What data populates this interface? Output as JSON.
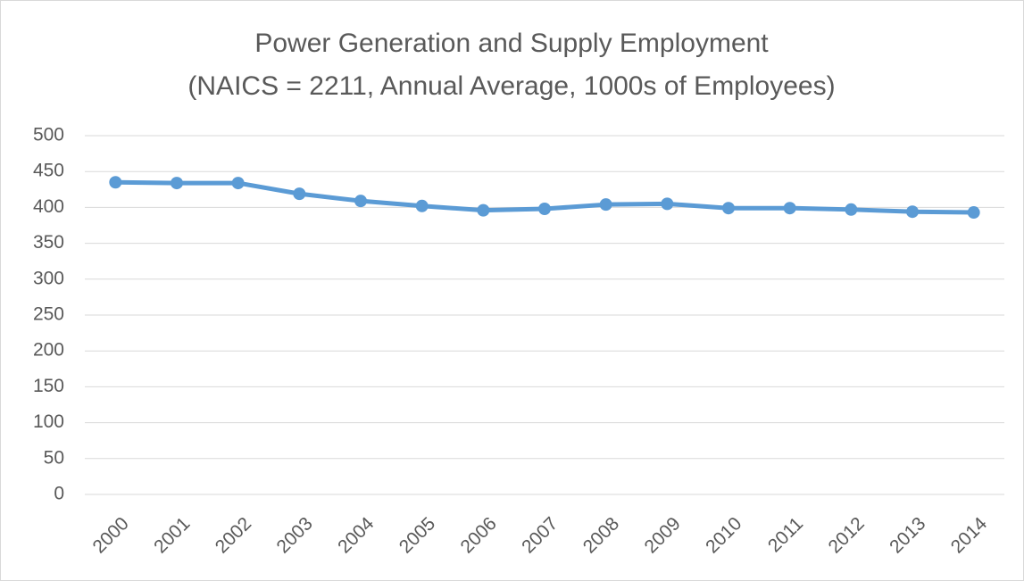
{
  "chart_data": {
    "type": "line",
    "title": "Power Generation and Supply Employment",
    "subtitle": "(NAICS = 2211, Annual Average, 1000s of Employees)",
    "categories": [
      "2000",
      "2001",
      "2002",
      "2003",
      "2004",
      "2005",
      "2006",
      "2007",
      "2008",
      "2009",
      "2010",
      "2011",
      "2012",
      "2013",
      "2014"
    ],
    "series": [
      {
        "name": "Employment",
        "color": "#5b9bd5",
        "values": [
          435,
          434,
          434,
          419,
          409,
          402,
          396,
          398,
          404,
          405,
          399,
          399,
          397,
          394,
          393
        ]
      }
    ],
    "ylim": [
      0,
      500
    ],
    "yticks": [
      0,
      50,
      100,
      150,
      200,
      250,
      300,
      350,
      400,
      450,
      500
    ],
    "grid": true
  }
}
